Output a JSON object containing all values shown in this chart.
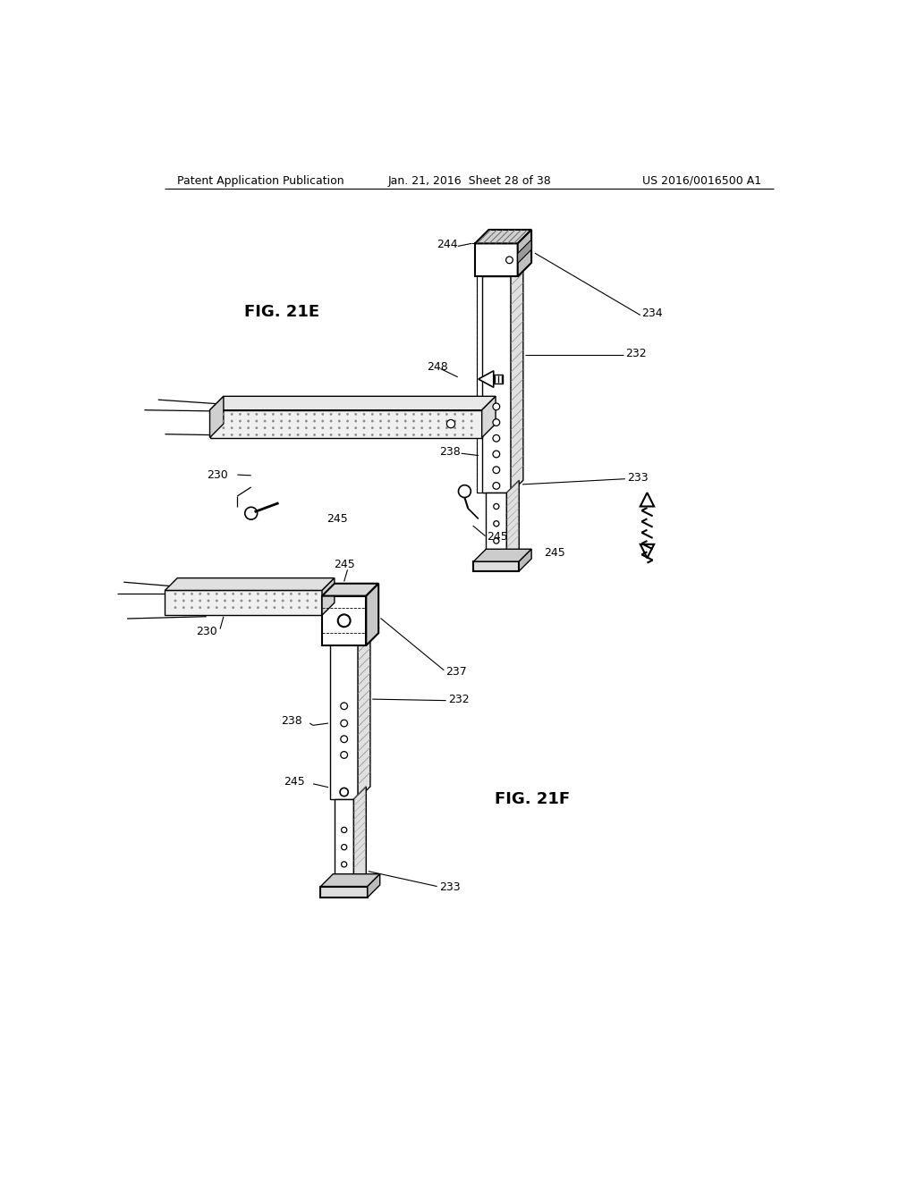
{
  "bg_color": "#ffffff",
  "line_color": "#000000",
  "header_left": "Patent Application Publication",
  "header_mid": "Jan. 21, 2016  Sheet 28 of 38",
  "header_right": "US 2016/0016500 A1",
  "fig_label_21E": "FIG. 21E",
  "fig_label_21F": "FIG. 21F",
  "hatch_color": "#aaaaaa",
  "dot_fill": "#cccccc"
}
